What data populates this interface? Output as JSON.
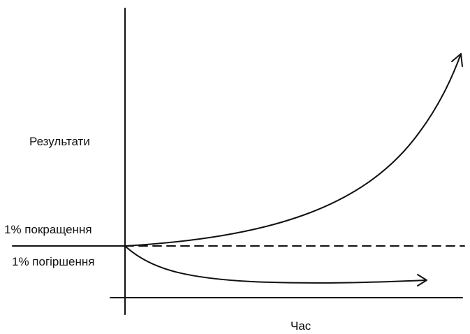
{
  "labels": {
    "y_axis": "Результати",
    "x_axis": "Час",
    "improve": "1% покращення",
    "decline": "1% погіршення"
  },
  "colors": {
    "line": "#111111",
    "background": "#ffffff"
  }
}
